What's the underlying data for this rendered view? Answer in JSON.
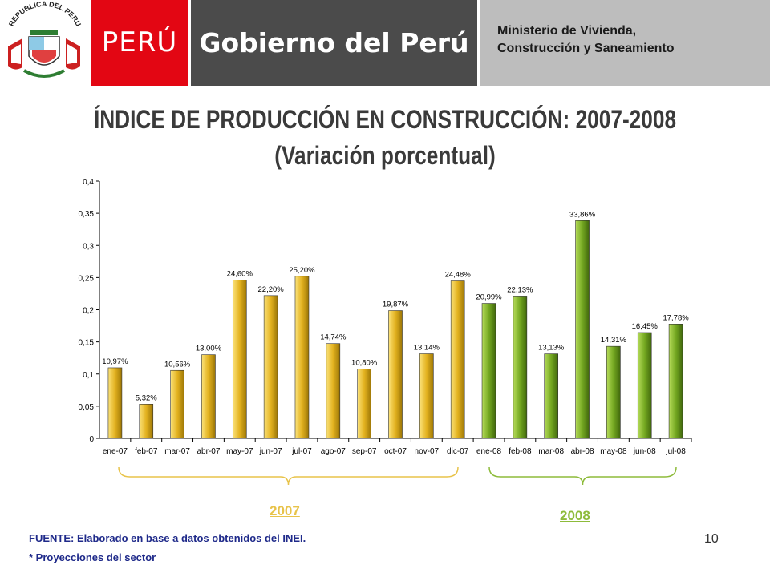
{
  "header": {
    "peru_label": "PERÚ",
    "gobierno_label": "Gobierno del Perú",
    "ministry_label": "Ministerio de Vivienda,\nConstrucción y Saneamiento",
    "seal_text": "REPUBLICA DEL PERU",
    "colors": {
      "peru_red": "#e30613",
      "gobierno_gray": "#4b4b4b",
      "ministry_gray": "#bdbdbd"
    }
  },
  "title": "ÍNDICE DE PRODUCCIÓN EN CONSTRUCCIÓN: 2007-2008",
  "subtitle": "(Variación porcentual)",
  "chart_data": {
    "type": "bar",
    "categories": [
      "ene-07",
      "feb-07",
      "mar-07",
      "abr-07",
      "may-07",
      "jun-07",
      "jul-07",
      "ago-07",
      "sep-07",
      "oct-07",
      "nov-07",
      "dic-07",
      "ene-08",
      "feb-08",
      "mar-08",
      "abr-08",
      "may-08",
      "jun-08",
      "jul-08"
    ],
    "values": [
      0.1097,
      0.0532,
      0.1056,
      0.13,
      0.246,
      0.222,
      0.252,
      0.1474,
      0.108,
      0.1987,
      0.1314,
      0.2448,
      0.2099,
      0.2213,
      0.1313,
      0.3386,
      0.1431,
      0.1645,
      0.1778
    ],
    "data_labels": [
      "10,97%",
      "5,32%",
      "10,56%",
      "13,00%",
      "24,60%",
      "22,20%",
      "25,20%",
      "14,74%",
      "10,80%",
      "19,87%",
      "13,14%",
      "24,48%",
      "20,99%",
      "22,13%",
      "13,13%",
      "33,86%",
      "14,31%",
      "16,45%",
      "17,78%"
    ],
    "ylim": [
      0,
      0.4
    ],
    "yticks": [
      "0",
      "0,05",
      "0,1",
      "0,15",
      "0,2",
      "0,25",
      "0,3",
      "0,35",
      "0,4"
    ],
    "title": "",
    "xlabel": "",
    "ylabel": "",
    "grid": false,
    "colors": {
      "2007": "#d4a017",
      "2008": "#6b9e1a"
    },
    "groups": [
      {
        "label": "2007",
        "color": "#e8c34a"
      },
      {
        "label": "2008",
        "color": "#8dbb3a"
      }
    ]
  },
  "footer": {
    "source": "FUENTE: Elaborado en base a datos obtenidos del INEI.",
    "note": "* Proyecciones del sector",
    "page_number": "10"
  }
}
